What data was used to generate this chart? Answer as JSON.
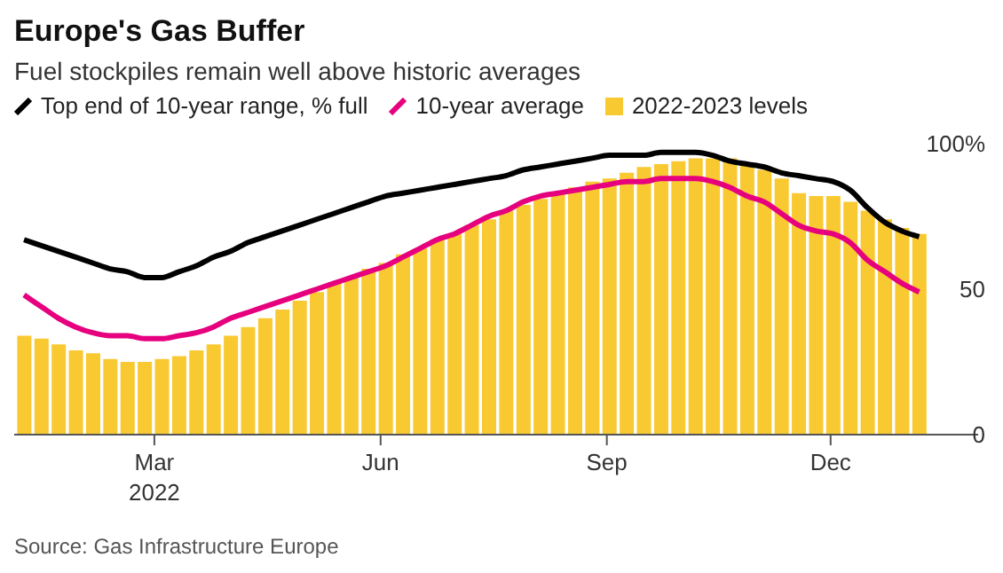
{
  "chart_data": {
    "type": "bar",
    "title": "Europe's Gas Buffer",
    "subtitle": "Fuel stockpiles remain well above historic averages",
    "annotations": [
      "Source: Gas Infrastructure Europe"
    ],
    "x": [
      "2022-01-07",
      "2022-01-14",
      "2022-01-21",
      "2022-01-28",
      "2022-02-04",
      "2022-02-11",
      "2022-02-18",
      "2022-02-25",
      "2022-03-04",
      "2022-03-11",
      "2022-03-18",
      "2022-03-25",
      "2022-04-01",
      "2022-04-08",
      "2022-04-15",
      "2022-04-22",
      "2022-04-29",
      "2022-05-06",
      "2022-05-13",
      "2022-05-20",
      "2022-05-27",
      "2022-06-03",
      "2022-06-10",
      "2022-06-17",
      "2022-06-24",
      "2022-07-01",
      "2022-07-08",
      "2022-07-15",
      "2022-07-22",
      "2022-07-29",
      "2022-08-05",
      "2022-08-12",
      "2022-08-19",
      "2022-08-26",
      "2022-09-02",
      "2022-09-09",
      "2022-09-16",
      "2022-09-23",
      "2022-09-30",
      "2022-10-07",
      "2022-10-14",
      "2022-10-21",
      "2022-10-28",
      "2022-11-04",
      "2022-11-11",
      "2022-11-18",
      "2022-11-25",
      "2022-12-02",
      "2022-12-09",
      "2022-12-16",
      "2022-12-23",
      "2022-12-30",
      "2023-01-06"
    ],
    "series": [
      {
        "name": "Top end of 10-year range, % full",
        "type": "line",
        "color": "#000000",
        "values": [
          67,
          65,
          63,
          61,
          59,
          57,
          56,
          54,
          54,
          56,
          58,
          61,
          63,
          66,
          68,
          70,
          72,
          74,
          76,
          78,
          80,
          82,
          83,
          84,
          85,
          86,
          87,
          88,
          89,
          91,
          92,
          93,
          94,
          95,
          96,
          96,
          96,
          97,
          97,
          97,
          96,
          94,
          93,
          92,
          90,
          89,
          88,
          87,
          84,
          78,
          73,
          70,
          68
        ]
      },
      {
        "name": "10-year average",
        "type": "line",
        "color": "#e6007e",
        "values": [
          48,
          44,
          40,
          37,
          35,
          34,
          34,
          33,
          33,
          34,
          35,
          37,
          40,
          42,
          44,
          46,
          48,
          50,
          52,
          54,
          56,
          58,
          61,
          64,
          67,
          69,
          72,
          75,
          77,
          80,
          82,
          83,
          84,
          85,
          86,
          87,
          87,
          88,
          88,
          88,
          87,
          85,
          82,
          80,
          76,
          72,
          70,
          69,
          66,
          60,
          56,
          52,
          49
        ]
      },
      {
        "name": "2022-2023 levels",
        "color": "#f9c932",
        "values": [
          34,
          33,
          31,
          29,
          28,
          26,
          25,
          25,
          26,
          27,
          29,
          31,
          34,
          37,
          40,
          43,
          46,
          49,
          52,
          54,
          57,
          59,
          62,
          64,
          67,
          69,
          72,
          74,
          77,
          79,
          81,
          83,
          85,
          87,
          88,
          90,
          92,
          93,
          94,
          95,
          95,
          95,
          93,
          91,
          88,
          83,
          82,
          82,
          80,
          77,
          74,
          71,
          69
        ]
      }
    ],
    "xlim": [
      "2022-01-03",
      "2023-01-30"
    ],
    "xticks": [
      {
        "value": "2022-03-01",
        "label": "Mar\n2022"
      },
      {
        "value": "2022-06-01",
        "label": "Jun"
      },
      {
        "value": "2022-09-01",
        "label": "Sep"
      },
      {
        "value": "2022-12-01",
        "label": "Dec"
      }
    ],
    "ylim": [
      0,
      100
    ],
    "yticks": [
      0,
      50,
      {
        "value": 100,
        "label": "100%"
      }
    ],
    "legend": "top left"
  }
}
